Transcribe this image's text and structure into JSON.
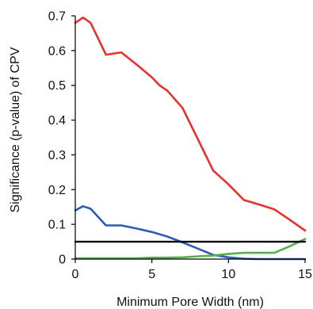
{
  "chart_data": {
    "type": "line",
    "title": "",
    "xlabel": "Minimum Pore Width (nm)",
    "ylabel": "Significance (p-value) of CPV",
    "xlim": [
      0,
      15
    ],
    "ylim": [
      0,
      0.7
    ],
    "xticks": [
      0,
      5,
      10,
      15
    ],
    "yticks": [
      0,
      0.1,
      0.2,
      0.3,
      0.4,
      0.5,
      0.6,
      0.7
    ],
    "xtick_labels": [
      "0",
      "5",
      "10",
      "15"
    ],
    "ytick_labels": [
      "0",
      "0.1",
      "0.2",
      "0.3",
      "0.4",
      "0.5",
      "0.6",
      "0.7"
    ],
    "grid": false,
    "legend": "none",
    "series": [
      {
        "color": "#e8312b",
        "x": [
          0,
          0.5,
          1,
          2,
          3,
          4,
          5,
          5.5,
          6,
          7,
          8,
          9,
          10,
          11,
          12,
          13,
          14,
          15
        ],
        "y": [
          0.68,
          0.695,
          0.68,
          0.588,
          0.595,
          0.56,
          0.523,
          0.5,
          0.485,
          0.435,
          0.345,
          0.255,
          0.215,
          0.17,
          0.157,
          0.143,
          0.113,
          0.082
        ]
      },
      {
        "color": "#2a5cb8",
        "x": [
          0,
          0.5,
          1,
          2,
          3,
          4,
          5,
          6,
          7,
          8,
          9,
          10,
          11,
          12,
          13,
          14,
          15
        ],
        "y": [
          0.14,
          0.152,
          0.145,
          0.097,
          0.097,
          0.088,
          0.078,
          0.065,
          0.048,
          0.03,
          0.012,
          0.005,
          0.001,
          0,
          0,
          0,
          0
        ]
      },
      {
        "color": "#55b04a",
        "x": [
          0,
          1,
          2,
          3,
          4,
          5,
          6,
          7,
          8,
          9,
          10,
          11,
          12,
          13,
          14,
          15
        ],
        "y": [
          0.002,
          0.002,
          0.002,
          0.002,
          0.002,
          0.004,
          0.004,
          0.005,
          0.008,
          0.01,
          0.015,
          0.018,
          0.018,
          0.018,
          0.037,
          0.058
        ]
      },
      {
        "color": "#000000",
        "x": [
          0,
          15
        ],
        "y": [
          0.05,
          0.05
        ]
      }
    ]
  }
}
